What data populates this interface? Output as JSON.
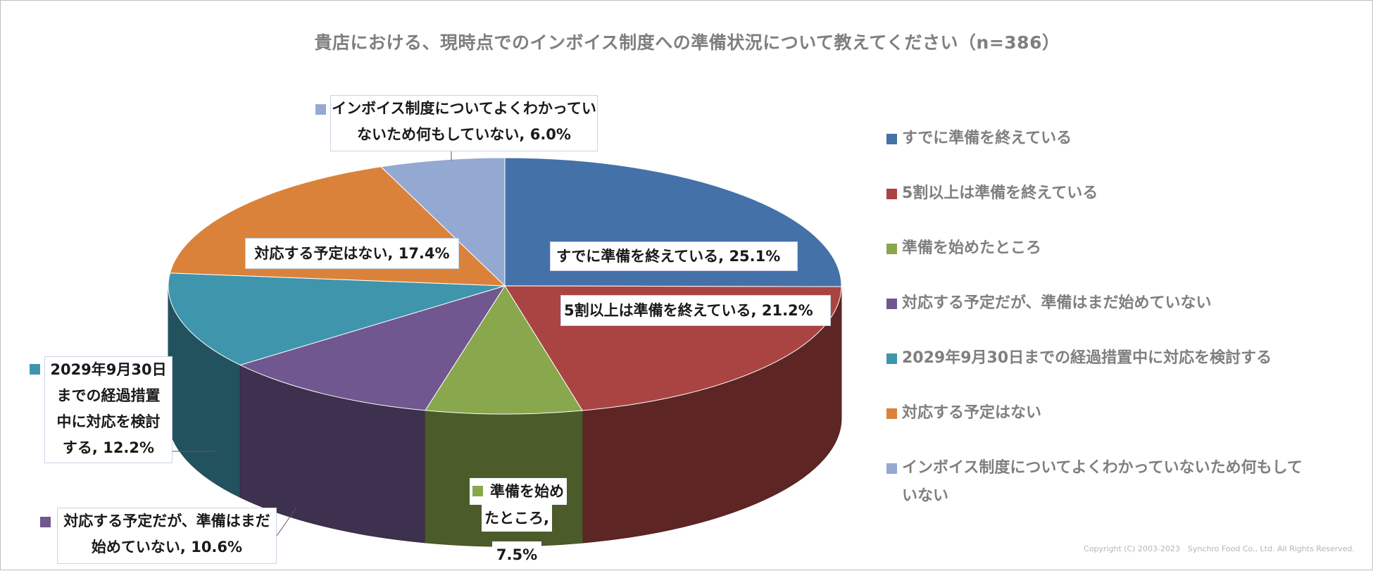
{
  "chart_data": {
    "type": "pie",
    "title": "貴店における、現時点でのインボイス制度への準備状況について教えてください（n=386）",
    "slices": [
      {
        "label": "すでに準備を終えている",
        "value": 25.1,
        "value_text": "25.1%",
        "color": "#4571A9"
      },
      {
        "label": "5割以上は準備を終えている",
        "value": 21.2,
        "value_text": "21.2%",
        "color": "#A94442"
      },
      {
        "label": "準備を始めたところ",
        "value": 7.5,
        "value_text": "7.5%",
        "color": "#89A74C"
      },
      {
        "label": "対応する予定だが、準備はまだ始めていない",
        "value": 10.6,
        "value_text": "10.6%",
        "color": "#70578F"
      },
      {
        "label": "2029年9月30日までの経過措置中に対応を検討する",
        "value": 12.2,
        "value_text": "12.2%",
        "color": "#3F95AC"
      },
      {
        "label": "対応する予定はない",
        "value": 17.4,
        "value_text": "17.4%",
        "color": "#DA823A"
      },
      {
        "label": "インボイス制度についてよくわかっていないため何もしていない",
        "value": 6.0,
        "value_text": "6.0%",
        "color": "#94A9D1"
      }
    ],
    "legend_position": "right"
  },
  "labels": {
    "s0": "すでに準備を終えている, 25.1%",
    "s1": "5割以上は準備を終えている, 21.2%",
    "s2_l1": "準備を始め",
    "s2_l2": "たところ,",
    "s2_l3": "7.5%",
    "s3_l1": "対応する予定だが、準備はまだ",
    "s3_l2": "始めていない, 10.6%",
    "s4_l1": "2029年9月30日",
    "s4_l2": "までの経過措置",
    "s4_l3": "中に対応を検討",
    "s4_l4": "する, 12.2%",
    "s5": "対応する予定はない, 17.4%",
    "s6_l1": "インボイス制度についてよくわかってい",
    "s6_l2": "ないため何もしていない, 6.0%"
  },
  "legend": {
    "l1": "インボイス制度についてよくわかっていないため何もして",
    "l2": "いない"
  },
  "copyright": "Copyright (C) 2003-2023　Synchro Food Co., Ltd. All Rights Reserved."
}
